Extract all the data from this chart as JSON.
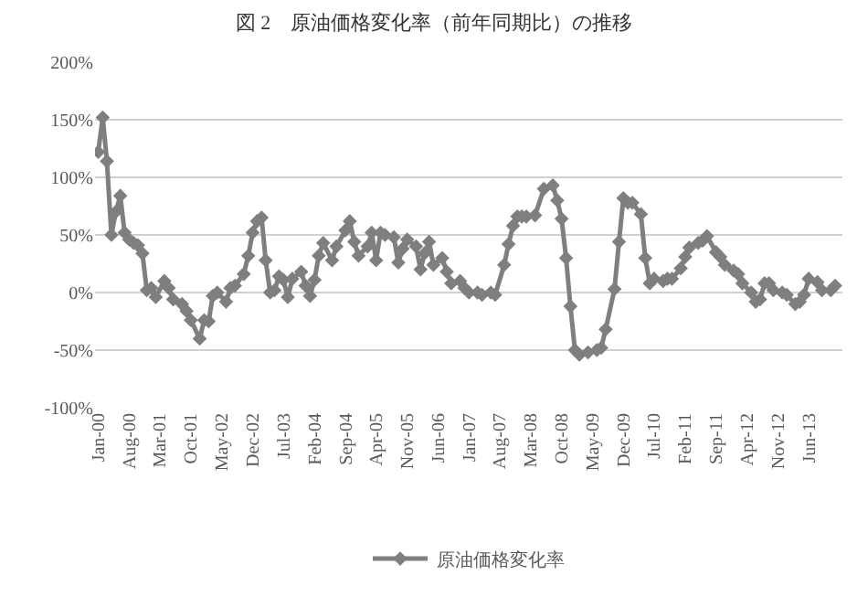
{
  "chart_data": {
    "type": "line",
    "title": "図 2　原油価格変化率（前年同期比）の推移",
    "x": [
      "2000-01",
      "2000-02",
      "2000-03",
      "2000-04",
      "2000-05",
      "2000-06",
      "2000-07",
      "2000-08",
      "2000-09",
      "2000-10",
      "2000-11",
      "2000-12",
      "2001-01",
      "2001-02",
      "2001-04",
      "2001-05",
      "2001-06",
      "2001-08",
      "2001-09",
      "2001-10",
      "2001-12",
      "2002-01",
      "2002-02",
      "2002-03",
      "2002-04",
      "2002-06",
      "2002-07",
      "2002-08",
      "2002-10",
      "2002-11",
      "2002-12",
      "2003-01",
      "2003-02",
      "2003-03",
      "2003-04",
      "2003-05",
      "2003-06",
      "2003-07",
      "2003-08",
      "2003-09",
      "2003-11",
      "2003-12",
      "2004-01",
      "2004-02",
      "2004-03",
      "2004-04",
      "2004-06",
      "2004-07",
      "2004-09",
      "2004-10",
      "2004-11",
      "2004-12",
      "2005-02",
      "2005-03",
      "2005-04",
      "2005-05",
      "2005-06",
      "2005-08",
      "2005-09",
      "2005-10",
      "2005-11",
      "2006-01",
      "2006-02",
      "2006-03",
      "2006-04",
      "2006-05",
      "2006-07",
      "2006-08",
      "2006-09",
      "2006-11",
      "2006-12",
      "2007-01",
      "2007-03",
      "2007-04",
      "2007-06",
      "2007-07",
      "2007-09",
      "2007-10",
      "2007-11",
      "2007-12",
      "2008-01",
      "2008-02",
      "2008-04",
      "2008-06",
      "2008-08",
      "2008-09",
      "2008-10",
      "2008-11",
      "2008-12",
      "2009-01",
      "2009-02",
      "2009-04",
      "2009-06",
      "2009-07",
      "2009-08",
      "2009-10",
      "2009-11",
      "2009-12",
      "2010-01",
      "2010-02",
      "2010-04",
      "2010-05",
      "2010-06",
      "2010-07",
      "2010-09",
      "2010-10",
      "2010-11",
      "2011-01",
      "2011-02",
      "2011-03",
      "2011-05",
      "2011-06",
      "2011-07",
      "2011-09",
      "2011-10",
      "2011-11",
      "2012-01",
      "2012-02",
      "2012-03",
      "2012-05",
      "2012-06",
      "2012-07",
      "2012-08",
      "2012-09",
      "2012-10",
      "2012-12",
      "2013-01",
      "2013-03",
      "2013-04",
      "2013-05",
      "2013-06",
      "2013-08",
      "2013-09",
      "2013-11",
      "2013-12"
    ],
    "series": [
      {
        "name": "原油価格変化率",
        "color": "#7f7f7f",
        "values": [
          122,
          152,
          114,
          50,
          70,
          84,
          52,
          46,
          43,
          41,
          34,
          2,
          4,
          -4,
          10,
          4,
          -6,
          -10,
          -16,
          -24,
          -40,
          -24,
          -25,
          -3,
          0,
          -8,
          4,
          6,
          16,
          32,
          52,
          62,
          65,
          28,
          0,
          2,
          14,
          11,
          -4,
          12,
          18,
          6,
          -3,
          11,
          32,
          43,
          28,
          40,
          54,
          62,
          44,
          32,
          40,
          52,
          28,
          52,
          50,
          48,
          26,
          38,
          46,
          40,
          20,
          34,
          44,
          24,
          30,
          18,
          8,
          10,
          4,
          0,
          0,
          -2,
          0,
          -2,
          24,
          42,
          58,
          66,
          66,
          66,
          67,
          90,
          93,
          80,
          64,
          30,
          -12,
          -50,
          -54,
          -52,
          -50,
          -48,
          -32,
          3,
          44,
          82,
          78,
          78,
          68,
          30,
          8,
          12,
          10,
          12,
          12,
          21,
          31,
          39,
          43,
          45,
          49,
          35,
          31,
          24,
          19,
          16,
          8,
          0,
          -8,
          -6,
          8,
          8,
          2,
          0,
          -2,
          -10,
          -8,
          -2,
          12,
          9,
          2,
          2,
          6
        ]
      }
    ],
    "xlim": [
      "1999-12-10",
      "2014-01-20"
    ],
    "xticks": [
      {
        "value": "2000-01",
        "label": "Jan-00"
      },
      {
        "value": "2000-08",
        "label": "Aug-00"
      },
      {
        "value": "2001-03",
        "label": "Mar-01"
      },
      {
        "value": "2001-10",
        "label": "Oct-01"
      },
      {
        "value": "2002-05",
        "label": "May-02"
      },
      {
        "value": "2002-12",
        "label": "Dec-02"
      },
      {
        "value": "2003-07",
        "label": "Jul-03"
      },
      {
        "value": "2004-02",
        "label": "Feb-04"
      },
      {
        "value": "2004-09",
        "label": "Sep-04"
      },
      {
        "value": "2005-04",
        "label": "Apr-05"
      },
      {
        "value": "2005-11",
        "label": "Nov-05"
      },
      {
        "value": "2006-06",
        "label": "Jun-06"
      },
      {
        "value": "2007-01",
        "label": "Jan-07"
      },
      {
        "value": "2007-08",
        "label": "Aug-07"
      },
      {
        "value": "2008-03",
        "label": "Mar-08"
      },
      {
        "value": "2008-10",
        "label": "Oct-08"
      },
      {
        "value": "2009-05",
        "label": "May-09"
      },
      {
        "value": "2009-12",
        "label": "Dec-09"
      },
      {
        "value": "2010-07",
        "label": "Jul-10"
      },
      {
        "value": "2011-02",
        "label": "Feb-11"
      },
      {
        "value": "2011-09",
        "label": "Sep-11"
      },
      {
        "value": "2012-04",
        "label": "Apr-12"
      },
      {
        "value": "2012-11",
        "label": "Nov-12"
      },
      {
        "value": "2013-06",
        "label": "Jun-13"
      }
    ],
    "ylim": [
      -100,
      200
    ],
    "yticks": [
      {
        "value": -100,
        "label": "-100%"
      },
      {
        "value": -50,
        "label": "-50%"
      },
      {
        "value": 0,
        "label": "0%"
      },
      {
        "value": 50,
        "label": "50%"
      },
      {
        "value": 100,
        "label": "100%"
      },
      {
        "value": 150,
        "label": "150%"
      },
      {
        "value": 200,
        "label": "200%"
      }
    ],
    "grid": "y",
    "legend": "bottom",
    "marker": "diamond",
    "line_style": "solid"
  }
}
